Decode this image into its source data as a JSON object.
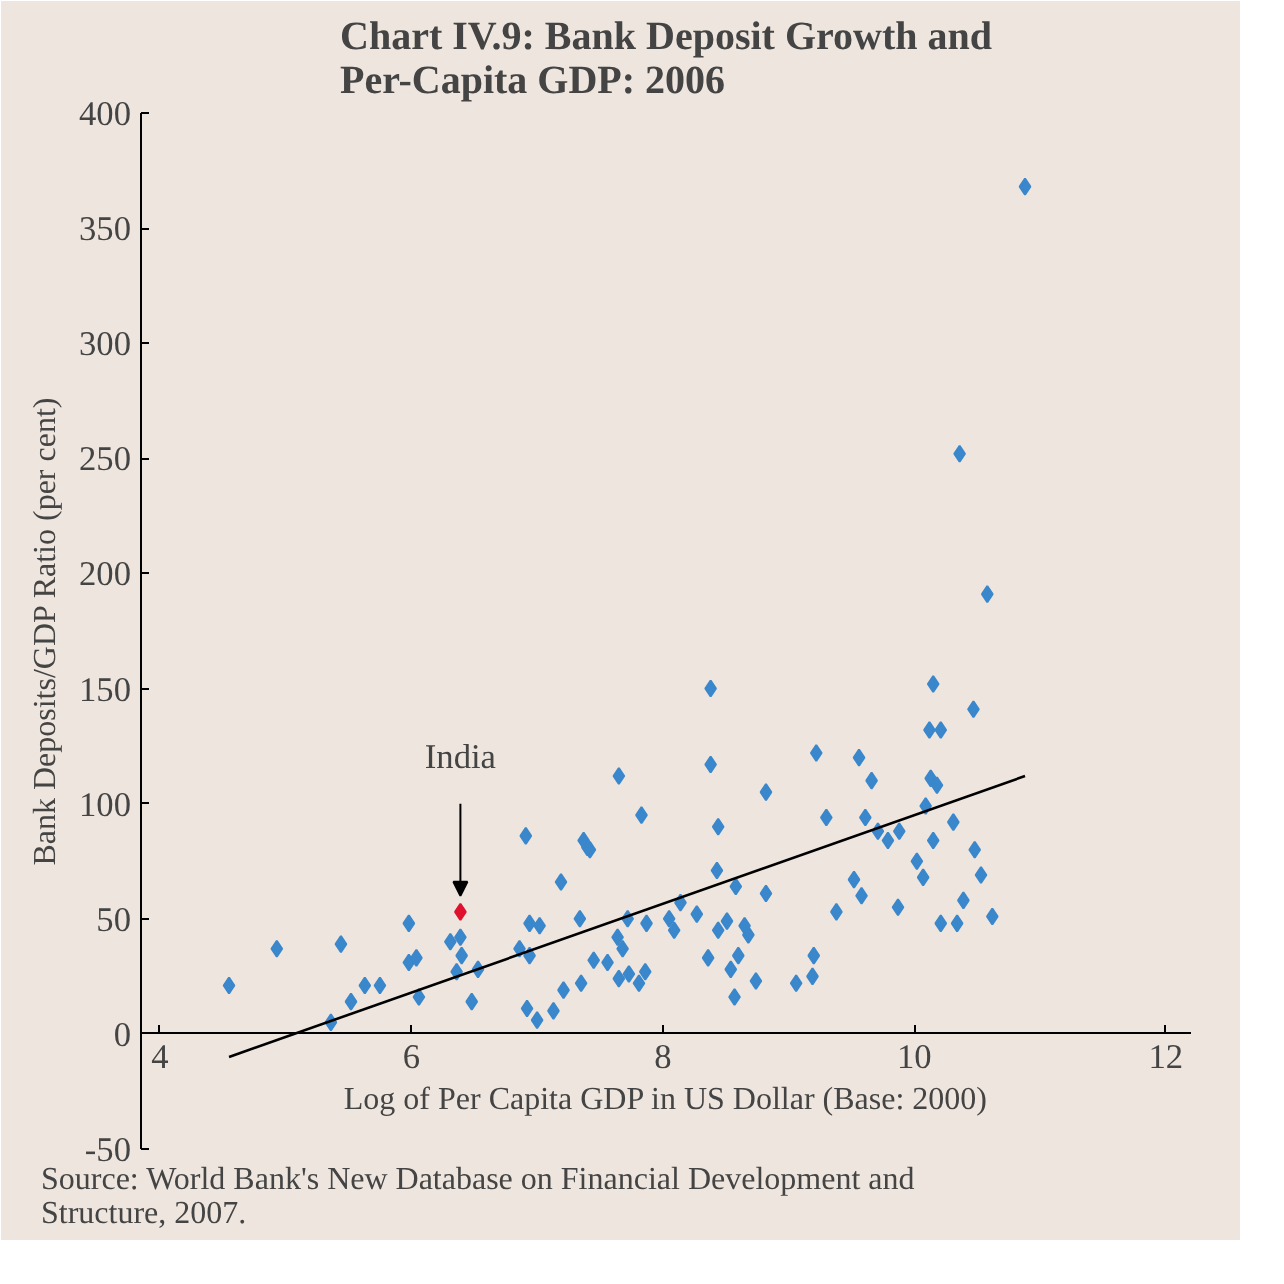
{
  "chart_data": {
    "type": "scatter",
    "title": "Chart IV.9: Bank Deposit Growth and Per-Capita GDP: 2006",
    "xlabel": "Log of Per Capita GDP in US Dollar (Base: 2000)",
    "ylabel": "Bank Deposits/GDP Ratio (per cent)",
    "xlim": [
      3.85,
      12.2
    ],
    "ylim": [
      -50,
      400
    ],
    "xticks": [
      4,
      6,
      8,
      10,
      12
    ],
    "yticks": [
      -50,
      0,
      50,
      100,
      150,
      200,
      250,
      300,
      350,
      400
    ],
    "grid": false,
    "marker": "diamond",
    "series": [
      {
        "color": "#3a87cc",
        "x": [
          4.55,
          4.93,
          5.44,
          5.52,
          5.36,
          5.63,
          5.75,
          5.98,
          5.98,
          6.04,
          6.06,
          6.31,
          6.39,
          6.4,
          6.36,
          6.53,
          6.48,
          6.91,
          6.86,
          6.94,
          7.02,
          6.94,
          6.92,
          7.0,
          7.13,
          7.19,
          7.21,
          7.35,
          7.34,
          7.4,
          8.38,
          8.38,
          7.65,
          7.83,
          8.44,
          8.82,
          9.22,
          9.56,
          9.66,
          9.3,
          9.61,
          7.37,
          7.42,
          8.43,
          8.58,
          8.82,
          9.52,
          9.58,
          9.38,
          7.72,
          7.87,
          8.05,
          8.14,
          8.27,
          8.09,
          7.64,
          7.68,
          8.51,
          8.44,
          8.65,
          8.68,
          8.36,
          8.6,
          8.54,
          7.45,
          7.56,
          7.65,
          7.73,
          7.81,
          7.86,
          8.57,
          8.74,
          9.06,
          9.19,
          9.2,
          10.88,
          10.36,
          10.58,
          10.15,
          10.47,
          10.12,
          10.21,
          10.13,
          10.18,
          10.09,
          9.71,
          9.79,
          9.88,
          10.31,
          10.15,
          10.48,
          10.02,
          10.53,
          10.07,
          10.39,
          9.87,
          10.21,
          10.34,
          10.62
        ],
        "values": [
          21,
          37,
          39,
          14,
          5,
          21,
          21,
          48,
          31,
          33,
          16,
          40,
          42,
          34,
          27,
          28,
          14,
          86,
          37,
          48,
          47,
          34,
          11,
          6,
          10,
          66,
          19,
          22,
          50,
          81,
          150,
          117,
          112,
          95,
          90,
          105,
          122,
          120,
          110,
          94,
          94,
          84,
          80,
          71,
          64,
          61,
          67,
          60,
          53,
          50,
          48,
          50,
          57,
          52,
          45,
          42,
          37,
          49,
          45,
          47,
          43,
          33,
          34,
          28,
          32,
          31,
          24,
          26,
          22,
          27,
          16,
          23,
          22,
          25,
          34,
          368,
          252,
          191,
          152,
          141,
          132,
          132,
          111,
          108,
          99,
          88,
          84,
          88,
          92,
          84,
          80,
          75,
          69,
          68,
          58,
          55,
          48,
          48,
          51
        ]
      },
      {
        "color": "#e0102f",
        "x": [
          6.39
        ],
        "values": [
          53
        ]
      },
      {
        "type": "line",
        "marker": "none",
        "color": "#000000",
        "x": [
          4.55,
          10.88
        ],
        "values": [
          -10,
          112
        ]
      }
    ],
    "annotations": [
      {
        "text": "India",
        "x": 6.39,
        "y": 53
      },
      "Source: World Bank's New Database on Financial Development and Structure, 2007."
    ]
  }
}
